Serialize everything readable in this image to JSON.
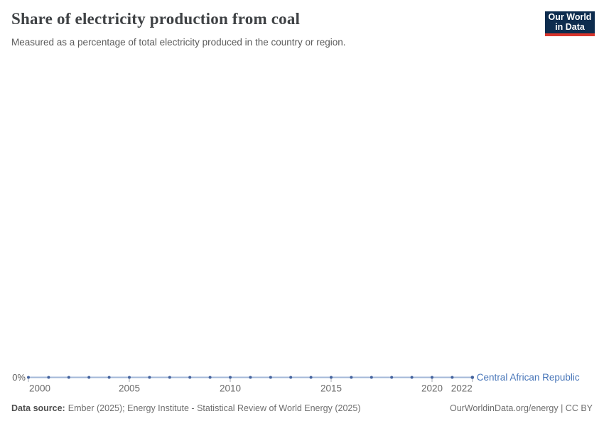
{
  "header": {
    "title": "Share of electricity production from coal",
    "subtitle": "Measured as a percentage of total electricity produced in the country or region.",
    "logo": {
      "line1": "Our World",
      "line2": "in Data",
      "bg_color": "#0d2c4e",
      "accent_color": "#d8352c"
    }
  },
  "chart_data": {
    "type": "line",
    "title": "Share of electricity production from coal",
    "xlabel": "",
    "ylabel": "",
    "xlim": [
      2000,
      2022
    ],
    "grid": false,
    "legend_position": "end-of-line",
    "x": [
      2000,
      2001,
      2002,
      2003,
      2004,
      2005,
      2006,
      2007,
      2008,
      2009,
      2010,
      2011,
      2012,
      2013,
      2014,
      2015,
      2016,
      2017,
      2018,
      2019,
      2020,
      2021,
      2022
    ],
    "series": [
      {
        "name": "Central African Republic",
        "values": [
          0,
          0,
          0,
          0,
          0,
          0,
          0,
          0,
          0,
          0,
          0,
          0,
          0,
          0,
          0,
          0,
          0,
          0,
          0,
          0,
          0,
          0,
          0
        ],
        "line_color": "#a3b8d8",
        "marker_color": "#44639e",
        "label_color": "#4876b9"
      }
    ],
    "x_ticks": [
      {
        "year": 2000,
        "label": "2000"
      },
      {
        "year": 2005,
        "label": "2005"
      },
      {
        "year": 2010,
        "label": "2010"
      },
      {
        "year": 2015,
        "label": "2015"
      },
      {
        "year": 2020,
        "label": "2020"
      },
      {
        "year": 2022,
        "label": "2022"
      }
    ],
    "y_ticks": [
      {
        "value": 0,
        "label": "0%"
      }
    ]
  },
  "footer": {
    "source_label": "Data source:",
    "source_value": "Ember (2025); Energy Institute - Statistical Review of World Energy (2025)",
    "rights": "OurWorldinData.org/energy | CC BY"
  }
}
